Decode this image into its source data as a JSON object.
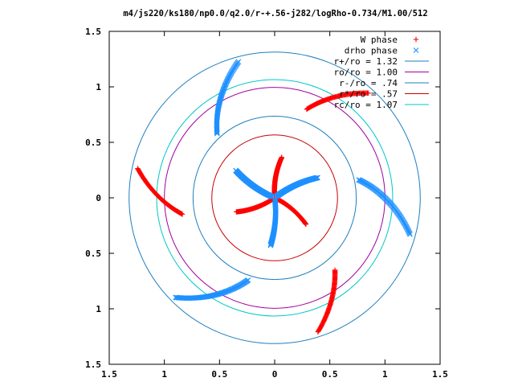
{
  "chart_data": {
    "type": "scatter",
    "title": "m4/js220/ks180/np0.0/q2.0/r-+.56-j282/logRho-0.734/M1.00/512",
    "xlabel": "",
    "ylabel": "",
    "xlim": [
      -1.5,
      1.5
    ],
    "ylim": [
      -1.5,
      1.5
    ],
    "x_ticks": [
      "1.5",
      "1",
      "0.5",
      "0",
      "0.5",
      "1",
      "1.5"
    ],
    "y_ticks": [
      "1.5",
      "1",
      "0.5",
      "0",
      "0.5",
      "1",
      "1.5"
    ],
    "grid": false,
    "legend_position": "top-right",
    "series": [
      {
        "name": "W phase",
        "marker": "plus",
        "color": "#ff0000",
        "arms": [
          {
            "r_start": 0.02,
            "r_end": 0.37,
            "theta_start": 94,
            "theta_end": 80
          },
          {
            "r_start": 0.02,
            "r_end": 0.37,
            "theta_start": 214,
            "theta_end": 200
          },
          {
            "r_start": 0.02,
            "r_end": 0.37,
            "theta_start": 334,
            "theta_end": 320
          },
          {
            "r_start": 0.85,
            "r_end": 1.27,
            "theta_start": 70,
            "theta_end": 48
          },
          {
            "r_start": 0.85,
            "r_end": 1.27,
            "theta_start": 190,
            "theta_end": 168
          },
          {
            "r_start": 0.85,
            "r_end": 1.27,
            "theta_start": 310,
            "theta_end": 288
          }
        ]
      },
      {
        "name": "drho phase",
        "marker": "cross",
        "color": "#1e90ff",
        "arms": [
          {
            "r_start": 0.02,
            "r_end": 0.43,
            "theta_start": 37,
            "theta_end": 25
          },
          {
            "r_start": 0.02,
            "r_end": 0.43,
            "theta_start": 157,
            "theta_end": 145
          },
          {
            "r_start": 0.02,
            "r_end": 0.43,
            "theta_start": 277,
            "theta_end": 265
          },
          {
            "r_start": 0.78,
            "r_end": 1.27,
            "theta_start": 12,
            "theta_end": -15
          },
          {
            "r_start": 0.78,
            "r_end": 1.27,
            "theta_start": 132,
            "theta_end": 105
          },
          {
            "r_start": 0.78,
            "r_end": 1.27,
            "theta_start": 252,
            "theta_end": 225
          }
        ]
      }
    ],
    "circles": [
      {
        "label": "r+/ro = 1.32",
        "radius": 1.32,
        "color": "#1e7fbf"
      },
      {
        "label": "ro/ro = 1.00",
        "radius": 1.0,
        "color": "#a000a0"
      },
      {
        "label": "r-/ro = .74",
        "radius": 0.74,
        "color": "#1e7fbf"
      },
      {
        "label": "r*/ro = .57",
        "radius": 0.57,
        "color": "#c80000"
      },
      {
        "label": "rc/ro = 1.07",
        "radius": 1.07,
        "color": "#00c8c8"
      }
    ]
  }
}
